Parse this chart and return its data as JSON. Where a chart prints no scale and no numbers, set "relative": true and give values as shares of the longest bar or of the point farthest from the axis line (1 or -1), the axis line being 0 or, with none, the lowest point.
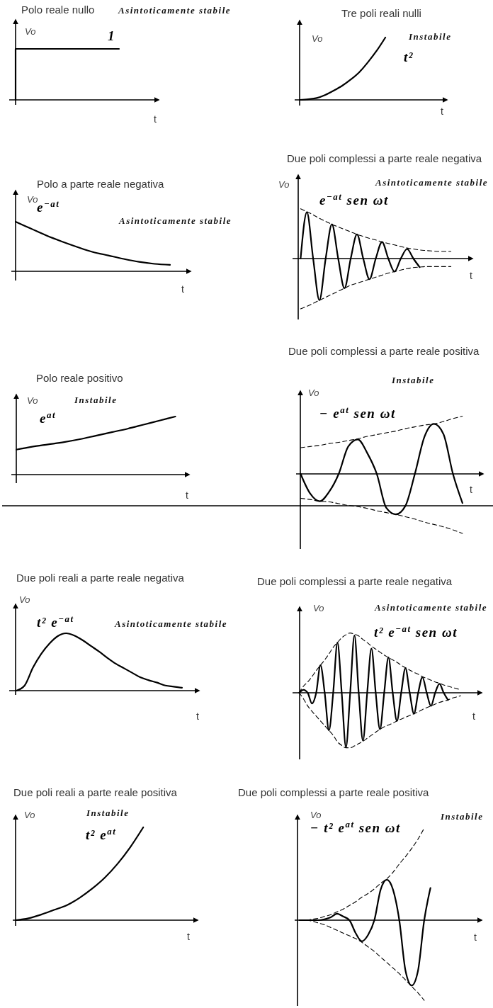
{
  "chart_data": [
    {
      "type": "step",
      "title": "Polo reale nullo",
      "xlabel": "t",
      "ylabel": "Vo",
      "relative": true,
      "annotations": [
        "Asintoticamente stabile"
      ],
      "categories": [
        null,
        null,
        null,
        null,
        null,
        null,
        null,
        null,
        null,
        null,
        null
      ],
      "series": [
        {
          "name": "1",
          "color": "#000000",
          "values": [
            0,
            1,
            1,
            1,
            1,
            1,
            1,
            1,
            1,
            1,
            1
          ]
        }
      ]
    },
    {
      "type": "line",
      "title": "Tre poli reali nulli",
      "xlabel": "t",
      "ylabel": "Vo",
      "relative": true,
      "annotations": [
        "Instabile"
      ],
      "categories": [
        null,
        null,
        null,
        null,
        null,
        null,
        null,
        null,
        null,
        null,
        null
      ],
      "series": [
        {
          "name": "t²",
          "color": "#000000",
          "values": [
            0,
            0.01,
            0.03,
            0.08,
            0.15,
            0.23,
            0.33,
            0.45,
            0.61,
            0.79,
            1
          ]
        }
      ]
    },
    {
      "type": "line",
      "title": "Polo a parte reale negativa",
      "xlabel": "t",
      "ylabel": "Vo",
      "relative": true,
      "annotations": [
        "Asintoticamente stabile"
      ],
      "categories": [
        null,
        null,
        null,
        null,
        null,
        null,
        null,
        null,
        null,
        null,
        null
      ],
      "series": [
        {
          "name": "e$^{−at}$",
          "color": "#000000",
          "values": [
            1,
            0.86,
            0.72,
            0.6,
            0.49,
            0.39,
            0.32,
            0.25,
            0.19,
            0.15,
            0.13
          ]
        }
      ]
    },
    {
      "type": "line",
      "title": "Due poli complessi a parte reale negativa",
      "xlabel": "t",
      "ylabel": "Vo",
      "relative": true,
      "annotations": [
        "Asintoticamente stabile"
      ],
      "categories": [
        null,
        null,
        null,
        null,
        null,
        null,
        null,
        null,
        null,
        null,
        null,
        null,
        null,
        null,
        null,
        null,
        null,
        null,
        null,
        null,
        null,
        null,
        null,
        null,
        null
      ],
      "series": [
        {
          "name": "e$^{−at}$ sen ωt",
          "color": "#000000",
          "values": [
            0,
            0.92,
            0,
            -0.83,
            0,
            0.68,
            0,
            -0.59,
            0,
            0.48,
            0,
            -0.41,
            0,
            0.33,
            0,
            -0.26,
            0,
            0.19,
            0,
            -0.17,
            null,
            null,
            null,
            null,
            null
          ]
        },
        {
          "color": "#000000",
          "line_style": "dashed",
          "values": [
            0.99,
            0.93,
            0.87,
            0.8,
            0.74,
            0.68,
            0.63,
            0.58,
            0.53,
            0.48,
            0.44,
            0.4,
            0.37,
            0.33,
            0.3,
            0.27,
            0.24,
            0.21,
            0.19,
            0.17,
            0.16,
            0.15,
            0.14,
            0.14,
            0.14
          ]
        },
        {
          "color": "#000000",
          "line_style": "dashed",
          "values": [
            -1,
            -0.95,
            -0.89,
            -0.83,
            -0.77,
            -0.71,
            -0.65,
            -0.59,
            -0.53,
            -0.49,
            -0.45,
            -0.41,
            -0.37,
            -0.33,
            -0.29,
            -0.26,
            -0.23,
            -0.2,
            -0.18,
            -0.17,
            -0.16,
            -0.16,
            -0.16,
            -0.16,
            -0.16
          ]
        }
      ]
    },
    {
      "type": "line",
      "title": "Polo reale positivo",
      "xlabel": "t",
      "ylabel": "Vo",
      "relative": true,
      "annotations": [
        "Instabile"
      ],
      "categories": [
        null,
        null,
        null,
        null,
        null,
        null,
        null,
        null,
        null,
        null,
        null
      ],
      "series": [
        {
          "name": "e$^{at}$",
          "color": "#000000",
          "values": [
            0.43,
            0.48,
            0.52,
            0.56,
            0.61,
            0.67,
            0.73,
            0.79,
            0.86,
            0.93,
            1
          ]
        }
      ]
    },
    {
      "type": "line",
      "title": "Due poli complessi a parte reale positiva",
      "xlabel": "t",
      "ylabel": "Vo",
      "relative": true,
      "annotations": [
        "Instabile"
      ],
      "categories": [
        null,
        null,
        null,
        null,
        null,
        null,
        null,
        null,
        null,
        null,
        null,
        null,
        null,
        null,
        null,
        null,
        null,
        null
      ],
      "series": [
        {
          "name": "− e$^{at}$ sen ωt",
          "color": "#000000",
          "values": [
            0,
            -0.33,
            -0.46,
            -0.3,
            0,
            0.46,
            0.58,
            0.35,
            0,
            -0.57,
            -0.68,
            -0.54,
            0,
            0.62,
            0.84,
            0.67,
            0,
            -0.49
          ]
        },
        {
          "color": "#000000",
          "line_style": "dashed",
          "values": [
            0.44,
            0.46,
            0.48,
            0.51,
            0.53,
            0.56,
            0.59,
            0.63,
            0.66,
            0.69,
            0.72,
            0.76,
            0.79,
            0.82,
            0.84,
            0.88,
            0.93,
            0.97
          ]
        },
        {
          "color": "#000000",
          "line_style": "dashed",
          "values": [
            -0.41,
            -0.43,
            -0.46,
            -0.47,
            -0.5,
            -0.53,
            -0.55,
            -0.58,
            -0.62,
            -0.65,
            -0.68,
            -0.72,
            -0.76,
            -0.81,
            -0.85,
            -0.89,
            -0.94,
            -1
          ]
        }
      ]
    },
    {
      "type": "line",
      "title": "Due poli reali a parte reale negativa",
      "xlabel": "t",
      "ylabel": "Vo",
      "relative": true,
      "annotations": [
        "Asintoticamente stabile"
      ],
      "categories": [
        null,
        null,
        null,
        null,
        null,
        null,
        null,
        null,
        null,
        null,
        null,
        null,
        null,
        null,
        null,
        null,
        null,
        null,
        null,
        null,
        null
      ],
      "series": [
        {
          "name": "t² e$^{−at}$",
          "color": "#000000",
          "values": [
            0,
            0.09,
            0.4,
            0.64,
            0.82,
            0.95,
            1,
            0.96,
            0.88,
            0.78,
            0.68,
            0.57,
            0.47,
            0.39,
            0.31,
            0.23,
            0.18,
            0.14,
            0.09,
            0.07,
            0.05
          ]
        }
      ]
    },
    {
      "type": "line",
      "title": "Due poli complessi a parte reale negativa",
      "xlabel": "t",
      "ylabel": "Vo",
      "relative": true,
      "annotations": [
        "Asintoticamente stabile"
      ],
      "categories": [
        null,
        null,
        null,
        null,
        null,
        null,
        null,
        null,
        null,
        null,
        null,
        null,
        null,
        null,
        null,
        null,
        null,
        null,
        null,
        null,
        null,
        null,
        null,
        null,
        null,
        null,
        null,
        null,
        null,
        null,
        null,
        null,
        null,
        null,
        null,
        null,
        null,
        null,
        null
      ],
      "series": [
        {
          "name": "t² e$^{−at}$ sen ωt",
          "color": "#000000",
          "values": [
            0,
            0.05,
            0,
            -0.18,
            0,
            0.46,
            0,
            -0.63,
            0,
            0.84,
            0,
            -0.91,
            0,
            0.96,
            0,
            -0.8,
            0,
            0.74,
            0,
            -0.61,
            0,
            0.59,
            0,
            -0.47,
            0,
            0.41,
            0,
            -0.35,
            0,
            0.26,
            0,
            -0.22,
            0,
            0.15,
            0,
            -0.12,
            null,
            null,
            null
          ]
        },
        {
          "color": "#000000",
          "line_style": "dashed",
          "values": [
            0,
            0.11,
            0.18,
            0.27,
            0.37,
            0.46,
            0.55,
            0.65,
            0.76,
            0.84,
            0.92,
            0.97,
            1,
            0.98,
            0.95,
            0.89,
            0.84,
            0.78,
            0.73,
            0.68,
            0.63,
            0.59,
            0.55,
            0.51,
            0.46,
            0.42,
            0.38,
            0.34,
            0.31,
            0.27,
            0.24,
            0.21,
            0.18,
            0.16,
            0.13,
            0.11,
            0.09,
            0.07,
            0.05
          ]
        },
        {
          "color": "#000000",
          "line_style": "dashed",
          "values": [
            0,
            -0.1,
            -0.22,
            -0.31,
            -0.39,
            -0.47,
            -0.55,
            -0.63,
            -0.71,
            -0.82,
            -0.88,
            -0.92,
            -0.92,
            -0.89,
            -0.85,
            -0.81,
            -0.76,
            -0.71,
            -0.66,
            -0.61,
            -0.57,
            -0.54,
            -0.51,
            -0.47,
            -0.44,
            -0.41,
            -0.38,
            -0.35,
            -0.32,
            -0.28,
            -0.25,
            -0.22,
            -0.19,
            -0.16,
            -0.14,
            -0.12,
            -0.09,
            -0.07,
            -0.05
          ]
        }
      ]
    },
    {
      "type": "line",
      "title": "Due poli reali a parte reale positiva",
      "xlabel": "t",
      "ylabel": "Vo",
      "relative": true,
      "annotations": [
        "Instabile"
      ],
      "categories": [
        null,
        null,
        null,
        null,
        null,
        null,
        null,
        null,
        null,
        null,
        null
      ],
      "series": [
        {
          "name": "t² e$^{at}$",
          "color": "#000000",
          "values": [
            0,
            0.02,
            0.06,
            0.11,
            0.16,
            0.24,
            0.34,
            0.46,
            0.61,
            0.79,
            1
          ]
        }
      ]
    },
    {
      "type": "line",
      "title": "Due poli complessi a parte reale positiva",
      "xlabel": "t",
      "ylabel": "Vo",
      "relative": true,
      "annotations": [
        "Instabile"
      ],
      "categories": [
        null,
        null,
        null,
        null,
        null,
        null,
        null,
        null,
        null,
        null,
        null,
        null,
        null,
        null,
        null,
        null,
        null,
        null,
        null,
        null,
        null,
        null
      ],
      "series": [
        {
          "name": "− t² e$^{at}$ sen ωt",
          "color": "#000000",
          "values": [
            0,
            0,
            0,
            0,
            0.01,
            0.03,
            0.07,
            0.04,
            0,
            -0.14,
            -0.23,
            -0.16,
            0,
            0.33,
            0.44,
            0.33,
            0,
            -0.55,
            -0.71,
            -0.55,
            0,
            0.35
          ]
        },
        {
          "color": "#000000",
          "line_style": "dashed",
          "values": [
            0,
            0,
            0.01,
            0.02,
            0.04,
            0.06,
            0.09,
            0.12,
            0.16,
            0.2,
            0.25,
            0.29,
            0.34,
            0.4,
            0.45,
            0.52,
            0.61,
            0.69,
            0.78,
            0.88,
            1,
            null
          ]
        },
        {
          "color": "#000000",
          "line_style": "dashed",
          "values": [
            0,
            0,
            -0.01,
            -0.03,
            -0.05,
            -0.08,
            -0.11,
            -0.14,
            -0.17,
            -0.2,
            -0.24,
            -0.29,
            -0.34,
            -0.4,
            -0.46,
            -0.52,
            -0.58,
            -0.65,
            -0.72,
            -0.79,
            -0.87,
            null
          ]
        }
      ]
    }
  ]
}
